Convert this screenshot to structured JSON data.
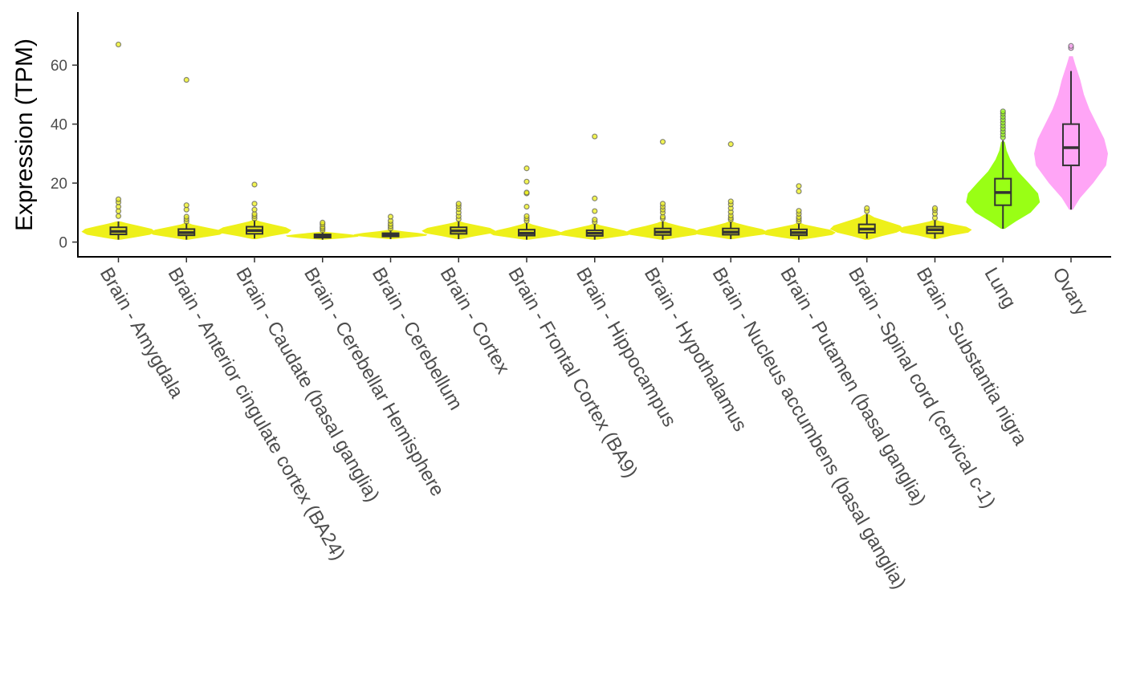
{
  "chart_data": {
    "type": "violin",
    "ylabel": "Expression (TPM)",
    "ylim": [
      -5,
      78
    ],
    "y_ticks": [
      0,
      20,
      40,
      60
    ],
    "grid": false,
    "fill_color_default": "#eef01a",
    "categories": [
      {
        "name": "Brain - Amygdala",
        "color": "#eef01a",
        "median": 3.6,
        "q1": 2.6,
        "q3": 5.0,
        "whisker_low": 0.8,
        "whisker_high": 7.0,
        "violin_min": 0.8,
        "violin_max": 7.0,
        "outliers": [
          8.8,
          10.5,
          12.0,
          13.5,
          14.5,
          67.0
        ],
        "profile": [
          [
            0.8,
            0.05
          ],
          [
            1.5,
            0.4
          ],
          [
            2.5,
            0.85
          ],
          [
            3.5,
            1.0
          ],
          [
            4.5,
            0.9
          ],
          [
            5.5,
            0.55
          ],
          [
            6.5,
            0.2
          ],
          [
            7.0,
            0.05
          ]
        ]
      },
      {
        "name": "Brain - Anterior cingulate cortex (BA24)",
        "color": "#eef01a",
        "median": 3.2,
        "q1": 2.3,
        "q3": 4.4,
        "whisker_low": 0.8,
        "whisker_high": 6.5,
        "violin_min": 0.8,
        "violin_max": 6.5,
        "outliers": [
          7.0,
          7.8,
          8.6,
          11.0,
          12.5,
          55.0
        ],
        "profile": [
          [
            0.8,
            0.05
          ],
          [
            1.5,
            0.4
          ],
          [
            2.5,
            0.9
          ],
          [
            3.2,
            1.0
          ],
          [
            4.2,
            0.85
          ],
          [
            5.2,
            0.45
          ],
          [
            6.0,
            0.15
          ],
          [
            6.5,
            0.05
          ]
        ]
      },
      {
        "name": "Brain - Caudate (basal ganglia)",
        "color": "#eef01a",
        "median": 3.9,
        "q1": 2.8,
        "q3": 5.2,
        "whisker_low": 1.2,
        "whisker_high": 7.5,
        "violin_min": 1.0,
        "violin_max": 7.5,
        "outliers": [
          8.0,
          8.8,
          9.5,
          11.0,
          13.0,
          19.5
        ],
        "profile": [
          [
            1.0,
            0.05
          ],
          [
            2.0,
            0.45
          ],
          [
            3.0,
            0.9
          ],
          [
            4.0,
            1.0
          ],
          [
            5.0,
            0.85
          ],
          [
            6.0,
            0.5
          ],
          [
            7.0,
            0.15
          ],
          [
            7.5,
            0.05
          ]
        ]
      },
      {
        "name": "Brain - Cerebellar Hemisphere",
        "color": "#eef01a",
        "median": 2.0,
        "q1": 1.5,
        "q3": 2.6,
        "whisker_low": 0.8,
        "whisker_high": 3.5,
        "violin_min": 0.8,
        "violin_max": 3.5,
        "outliers": [
          4.0,
          4.6,
          5.2,
          6.0,
          6.6
        ],
        "profile": [
          [
            0.8,
            0.05
          ],
          [
            1.3,
            0.55
          ],
          [
            1.8,
            0.95
          ],
          [
            2.2,
            1.0
          ],
          [
            2.7,
            0.7
          ],
          [
            3.2,
            0.3
          ],
          [
            3.5,
            0.05
          ]
        ]
      },
      {
        "name": "Brain - Cerebellum",
        "color": "#eef01a",
        "median": 2.4,
        "q1": 1.9,
        "q3": 3.0,
        "whisker_low": 1.0,
        "whisker_high": 4.2,
        "violin_min": 1.0,
        "violin_max": 4.2,
        "outliers": [
          4.6,
          5.4,
          6.2,
          7.2,
          8.6
        ],
        "profile": [
          [
            1.0,
            0.05
          ],
          [
            1.6,
            0.55
          ],
          [
            2.1,
            0.95
          ],
          [
            2.6,
            1.0
          ],
          [
            3.1,
            0.75
          ],
          [
            3.7,
            0.3
          ],
          [
            4.2,
            0.05
          ]
        ]
      },
      {
        "name": "Brain - Cortex",
        "color": "#eef01a",
        "median": 3.8,
        "q1": 2.8,
        "q3": 5.0,
        "whisker_low": 1.0,
        "whisker_high": 7.0,
        "violin_min": 1.0,
        "violin_max": 7.0,
        "outliers": [
          7.8,
          8.8,
          10.0,
          11.2,
          12.2,
          13.0
        ],
        "profile": [
          [
            1.0,
            0.05
          ],
          [
            2.0,
            0.45
          ],
          [
            3.0,
            0.9
          ],
          [
            3.8,
            1.0
          ],
          [
            4.8,
            0.85
          ],
          [
            5.8,
            0.45
          ],
          [
            6.6,
            0.15
          ],
          [
            7.0,
            0.05
          ]
        ]
      },
      {
        "name": "Brain - Frontal Cortex (BA9)",
        "color": "#eef01a",
        "median": 3.0,
        "q1": 2.2,
        "q3": 4.2,
        "whisker_low": 0.8,
        "whisker_high": 6.5,
        "violin_min": 0.8,
        "violin_max": 6.5,
        "outliers": [
          7.2,
          8.0,
          8.8,
          12.0,
          16.5,
          16.8,
          20.5,
          25.0
        ],
        "profile": [
          [
            0.8,
            0.05
          ],
          [
            1.5,
            0.45
          ],
          [
            2.3,
            0.9
          ],
          [
            3.0,
            1.0
          ],
          [
            4.0,
            0.8
          ],
          [
            5.0,
            0.45
          ],
          [
            6.0,
            0.15
          ],
          [
            6.5,
            0.05
          ]
        ]
      },
      {
        "name": "Brain - Hippocampus",
        "color": "#eef01a",
        "median": 3.0,
        "q1": 2.1,
        "q3": 4.0,
        "whisker_low": 0.8,
        "whisker_high": 6.2,
        "violin_min": 0.8,
        "violin_max": 6.2,
        "outliers": [
          6.8,
          7.6,
          10.5,
          14.8,
          35.8
        ],
        "profile": [
          [
            0.8,
            0.05
          ],
          [
            1.5,
            0.45
          ],
          [
            2.3,
            0.9
          ],
          [
            3.0,
            1.0
          ],
          [
            3.9,
            0.8
          ],
          [
            4.9,
            0.45
          ],
          [
            5.7,
            0.15
          ],
          [
            6.2,
            0.05
          ]
        ]
      },
      {
        "name": "Brain - Hypothalamus",
        "color": "#eef01a",
        "median": 3.4,
        "q1": 2.4,
        "q3": 4.6,
        "whisker_low": 0.8,
        "whisker_high": 7.0,
        "violin_min": 0.8,
        "violin_max": 7.0,
        "outliers": [
          8.0,
          8.6,
          10.0,
          11.0,
          12.0,
          13.0,
          34.0
        ],
        "profile": [
          [
            0.8,
            0.05
          ],
          [
            1.6,
            0.45
          ],
          [
            2.5,
            0.9
          ],
          [
            3.4,
            1.0
          ],
          [
            4.4,
            0.85
          ],
          [
            5.5,
            0.45
          ],
          [
            6.5,
            0.15
          ],
          [
            7.0,
            0.05
          ]
        ]
      },
      {
        "name": "Brain - Nucleus accumbens (basal ganglia)",
        "color": "#eef01a",
        "median": 3.4,
        "q1": 2.5,
        "q3": 4.6,
        "whisker_low": 1.0,
        "whisker_high": 7.0,
        "violin_min": 1.0,
        "violin_max": 7.0,
        "outliers": [
          7.6,
          8.2,
          9.0,
          10.2,
          11.5,
          12.8,
          13.8,
          33.2
        ],
        "profile": [
          [
            1.0,
            0.05
          ],
          [
            1.8,
            0.45
          ],
          [
            2.6,
            0.9
          ],
          [
            3.4,
            1.0
          ],
          [
            4.4,
            0.85
          ],
          [
            5.5,
            0.45
          ],
          [
            6.5,
            0.15
          ],
          [
            7.0,
            0.05
          ]
        ]
      },
      {
        "name": "Brain - Putamen (basal ganglia)",
        "color": "#eef01a",
        "median": 3.2,
        "q1": 2.3,
        "q3": 4.3,
        "whisker_low": 0.8,
        "whisker_high": 6.5,
        "violin_min": 0.8,
        "violin_max": 6.5,
        "outliers": [
          7.0,
          7.8,
          8.5,
          9.6,
          10.6,
          17.2,
          19.0
        ],
        "profile": [
          [
            0.8,
            0.05
          ],
          [
            1.5,
            0.45
          ],
          [
            2.4,
            0.9
          ],
          [
            3.2,
            1.0
          ],
          [
            4.2,
            0.85
          ],
          [
            5.2,
            0.45
          ],
          [
            6.0,
            0.15
          ],
          [
            6.5,
            0.05
          ]
        ]
      },
      {
        "name": "Brain - Spinal cord (cervical c-1)",
        "color": "#eef01a",
        "median": 4.4,
        "q1": 3.2,
        "q3": 6.0,
        "whisker_low": 1.2,
        "whisker_high": 9.5,
        "violin_min": 0.8,
        "violin_max": 9.5,
        "outliers": [
          10.5,
          11.5
        ],
        "profile": [
          [
            0.8,
            0.05
          ],
          [
            2.0,
            0.4
          ],
          [
            3.2,
            0.8
          ],
          [
            4.4,
            1.0
          ],
          [
            5.6,
            0.9
          ],
          [
            7.0,
            0.55
          ],
          [
            8.4,
            0.2
          ],
          [
            9.5,
            0.05
          ]
        ]
      },
      {
        "name": "Brain - Substantia nigra",
        "color": "#eef01a",
        "median": 4.2,
        "q1": 3.0,
        "q3": 5.2,
        "whisker_low": 1.2,
        "whisker_high": 7.5,
        "violin_min": 1.0,
        "violin_max": 7.5,
        "outliers": [
          8.2,
          9.6,
          10.8,
          11.5
        ],
        "profile": [
          [
            1.0,
            0.05
          ],
          [
            2.2,
            0.45
          ],
          [
            3.2,
            0.9
          ],
          [
            4.2,
            1.0
          ],
          [
            5.2,
            0.85
          ],
          [
            6.2,
            0.45
          ],
          [
            7.0,
            0.15
          ],
          [
            7.5,
            0.05
          ]
        ]
      },
      {
        "name": "Lung",
        "color": "#99ff15",
        "median": 16.8,
        "q1": 12.5,
        "q3": 21.5,
        "whisker_low": 4.5,
        "whisker_high": 34.5,
        "violin_min": 4.5,
        "violin_max": 34.0,
        "outliers": [
          35.5,
          36.5,
          37.5,
          38.5,
          39.5,
          40.5,
          41.5,
          42.5,
          43.5,
          44.3
        ],
        "profile": [
          [
            4.5,
            0.05
          ],
          [
            7.0,
            0.35
          ],
          [
            10.0,
            0.75
          ],
          [
            13.5,
            1.0
          ],
          [
            16.5,
            0.95
          ],
          [
            20.0,
            0.7
          ],
          [
            24.0,
            0.4
          ],
          [
            28.0,
            0.2
          ],
          [
            31.0,
            0.1
          ],
          [
            34.0,
            0.05
          ]
        ]
      },
      {
        "name": "Ovary",
        "color": "#ffa5f6",
        "median": 32.0,
        "q1": 26.0,
        "q3": 40.0,
        "whisker_low": 11.0,
        "whisker_high": 58.0,
        "violin_min": 11.0,
        "violin_max": 63.0,
        "outliers": [
          65.8,
          66.5
        ],
        "profile": [
          [
            11.0,
            0.05
          ],
          [
            15.0,
            0.25
          ],
          [
            20.0,
            0.6
          ],
          [
            26.0,
            0.95
          ],
          [
            30.0,
            1.0
          ],
          [
            35.0,
            0.9
          ],
          [
            40.0,
            0.7
          ],
          [
            45.0,
            0.5
          ],
          [
            50.0,
            0.35
          ],
          [
            55.0,
            0.25
          ],
          [
            60.0,
            0.12
          ],
          [
            63.0,
            0.05
          ]
        ]
      }
    ]
  }
}
